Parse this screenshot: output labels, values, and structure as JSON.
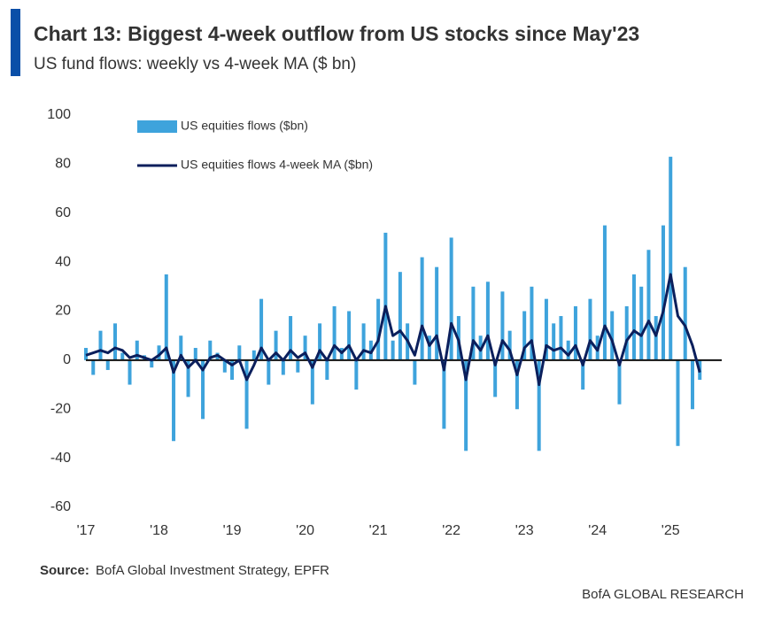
{
  "chart_data": {
    "type": "bar-line",
    "title": "Chart 13: Biggest 4-week outflow from US stocks since May'23",
    "subtitle": "US fund flows: weekly vs 4-week MA ($ bn)",
    "source_label": "Source:",
    "source": "BofA Global Investment Strategy, EPFR",
    "brand": "BofA GLOBAL RESEARCH",
    "x": [
      2017.0,
      2017.1,
      2017.2,
      2017.3,
      2017.4,
      2017.5,
      2017.6,
      2017.7,
      2017.8,
      2017.9,
      2018.0,
      2018.1,
      2018.2,
      2018.3,
      2018.4,
      2018.5,
      2018.6,
      2018.7,
      2018.8,
      2018.9,
      2019.0,
      2019.1,
      2019.2,
      2019.3,
      2019.4,
      2019.5,
      2019.6,
      2019.7,
      2019.8,
      2019.9,
      2020.0,
      2020.1,
      2020.2,
      2020.3,
      2020.4,
      2020.5,
      2020.6,
      2020.7,
      2020.8,
      2020.9,
      2021.0,
      2021.1,
      2021.2,
      2021.3,
      2021.4,
      2021.5,
      2021.6,
      2021.7,
      2021.8,
      2021.9,
      2022.0,
      2022.1,
      2022.2,
      2022.3,
      2022.4,
      2022.5,
      2022.6,
      2022.7,
      2022.8,
      2022.9,
      2023.0,
      2023.1,
      2023.2,
      2023.3,
      2023.4,
      2023.5,
      2023.6,
      2023.7,
      2023.8,
      2023.9,
      2024.0,
      2024.1,
      2024.2,
      2024.3,
      2024.4,
      2024.5,
      2024.6,
      2024.7,
      2024.8,
      2024.9,
      2025.0,
      2025.1,
      2025.2,
      2025.3,
      2025.4
    ],
    "series": [
      {
        "name": "US equities flows ($bn)",
        "color": "#3ea3dc",
        "kind": "bar",
        "values": [
          5,
          -6,
          12,
          -4,
          15,
          3,
          -10,
          8,
          2,
          -3,
          6,
          35,
          -33,
          10,
          -15,
          5,
          -24,
          8,
          3,
          -5,
          -8,
          6,
          -28,
          4,
          25,
          -10,
          12,
          -6,
          18,
          -5,
          10,
          -18,
          15,
          -8,
          22,
          5,
          20,
          -12,
          15,
          8,
          25,
          52,
          8,
          36,
          15,
          -10,
          42,
          10,
          38,
          -28,
          50,
          18,
          -37,
          30,
          10,
          32,
          -15,
          28,
          12,
          -20,
          20,
          30,
          -37,
          25,
          15,
          18,
          8,
          22,
          -12,
          25,
          10,
          55,
          20,
          -18,
          22,
          35,
          30,
          45,
          18,
          55,
          83,
          -35,
          38,
          -20,
          -8
        ]
      },
      {
        "name": "US equities flows 4-week MA ($bn)",
        "color": "#0b1f5c",
        "kind": "line",
        "values": [
          2,
          3,
          4,
          3,
          5,
          4,
          1,
          2,
          1,
          0,
          2,
          5,
          -5,
          2,
          -3,
          0,
          -4,
          1,
          2,
          0,
          -2,
          0,
          -8,
          -2,
          5,
          0,
          3,
          0,
          4,
          1,
          3,
          -3,
          4,
          0,
          6,
          3,
          6,
          0,
          4,
          3,
          8,
          22,
          10,
          12,
          8,
          2,
          14,
          6,
          10,
          -4,
          15,
          8,
          -8,
          8,
          4,
          10,
          -2,
          8,
          4,
          -6,
          5,
          8,
          -10,
          6,
          4,
          5,
          2,
          6,
          -2,
          8,
          4,
          14,
          8,
          -2,
          8,
          12,
          10,
          16,
          10,
          20,
          35,
          18,
          14,
          6,
          -5
        ]
      }
    ],
    "xlim": [
      2017,
      2025.7
    ],
    "xticks": [
      {
        "value": 2017,
        "label": "'17"
      },
      {
        "value": 2018,
        "label": "'18"
      },
      {
        "value": 2019,
        "label": "'19"
      },
      {
        "value": 2020,
        "label": "'20"
      },
      {
        "value": 2021,
        "label": "'21"
      },
      {
        "value": 2022,
        "label": "'22"
      },
      {
        "value": 2023,
        "label": "'23"
      },
      {
        "value": 2024,
        "label": "'24"
      },
      {
        "value": 2025,
        "label": "'25"
      }
    ],
    "ylim": [
      -60,
      100
    ],
    "yticks": [
      -60,
      -40,
      -20,
      0,
      20,
      40,
      60,
      80,
      100
    ]
  }
}
